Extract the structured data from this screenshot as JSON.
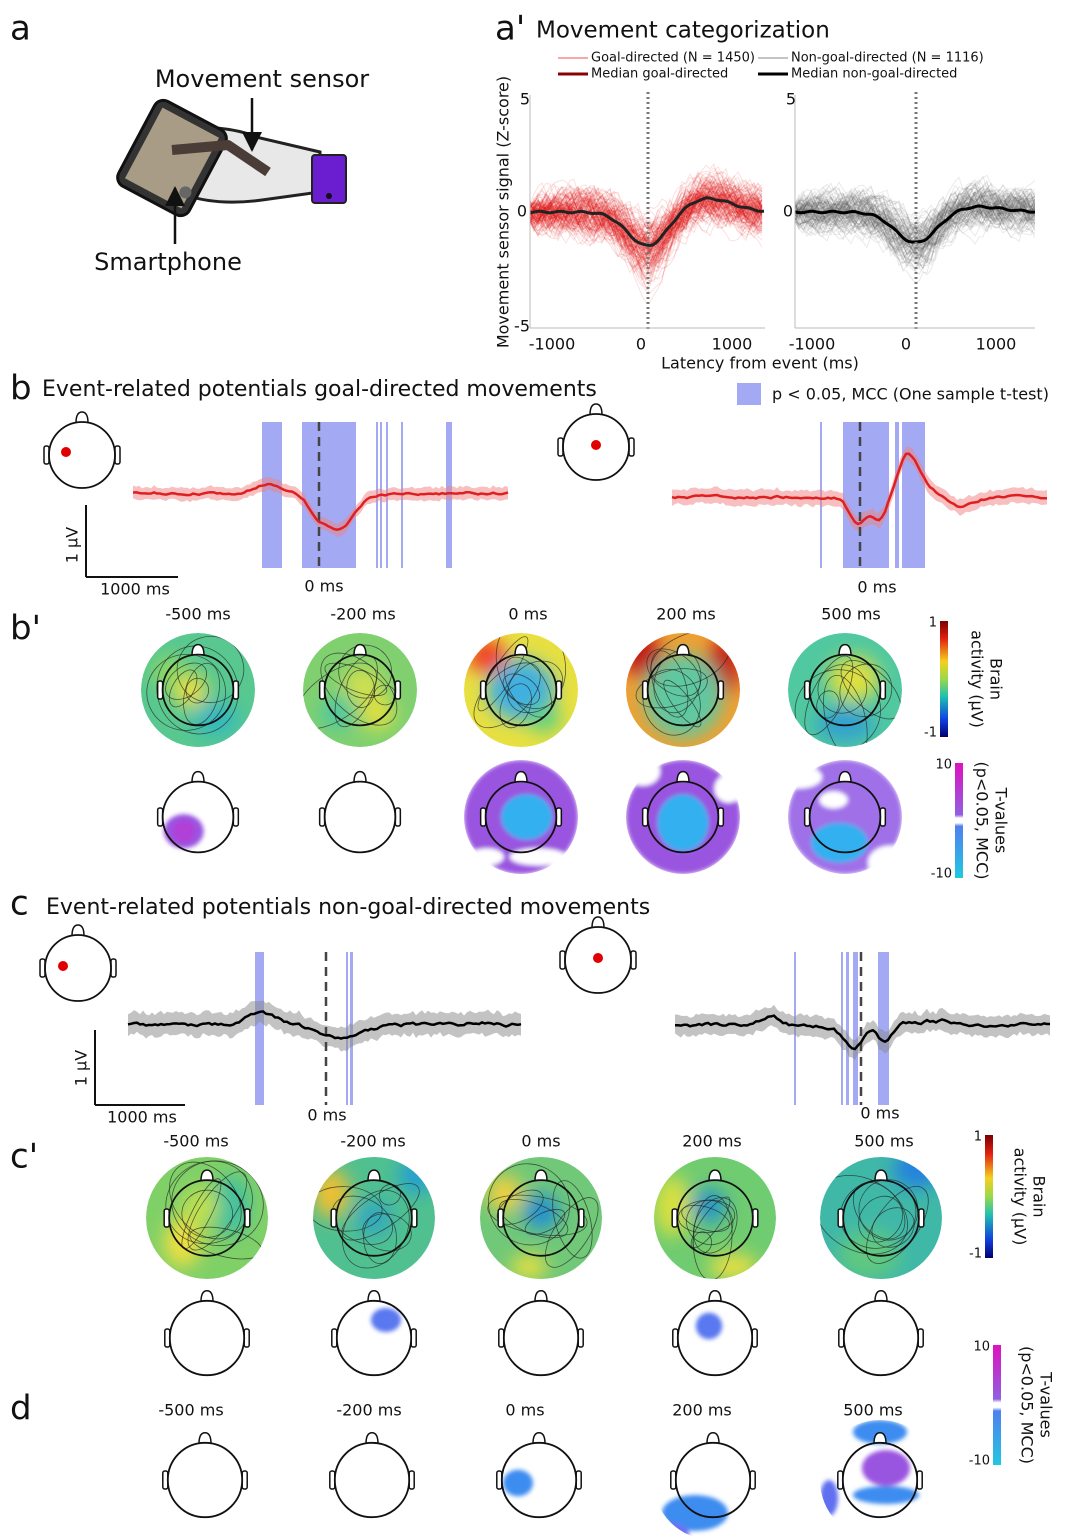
{
  "panel_a": {
    "letter": "a",
    "sensor_label": "Movement sensor",
    "phone_label": "Smartphone"
  },
  "panel_a_prime": {
    "letter": "a'",
    "title": "Movement categorization",
    "legend": [
      "Goal-directed (N = 1450)",
      "Non-goal-directed (N = 1116)",
      "Median goal-directed",
      "Median non-goal-directed"
    ],
    "y_label": "Movement sensor signal (Z-score)",
    "x_label": "Latency from event (ms)",
    "yticks": [
      "5",
      "0",
      "-5"
    ],
    "xticks": [
      "-1000",
      "0",
      "1000"
    ]
  },
  "panel_b": {
    "letter": "b",
    "title": "Event-related potentials goal-directed movements",
    "legend": "p < 0.05, MCC (One sample t-test)",
    "scale_y": "1 µV",
    "scale_x": "1000   ms",
    "zero_labels": [
      "0 ms",
      "0 ms"
    ]
  },
  "panel_b_prime": {
    "letter": "b'",
    "times": [
      "-500 ms",
      "-200 ms",
      "0 ms",
      "200 ms",
      "500 ms"
    ],
    "brain_bar": {
      "lines": [
        "Brain",
        "activity (µV)"
      ],
      "max": "1",
      "min": "-1"
    },
    "t_bar": {
      "lines": [
        "T-values",
        "(p<0.05, MCC)"
      ],
      "max": "10",
      "min": "-10"
    }
  },
  "panel_c": {
    "letter": "c",
    "title": "Event-related potentials non-goal-directed movements",
    "scale_y": "1 µV",
    "scale_x": "1000  ms",
    "zero_labels": [
      "0 ms",
      "0 ms"
    ]
  },
  "panel_c_prime": {
    "letter": "c'",
    "times": [
      "-500 ms",
      "-200 ms",
      "0 ms",
      "200 ms",
      "500 ms"
    ],
    "brain_bar": {
      "lines": [
        "Brain",
        "activity (µV)"
      ],
      "max": "1",
      "min": "-1"
    },
    "t_bar": {
      "lines": [
        "T-values",
        "(p<0.05, MCC)"
      ],
      "max": "10",
      "min": "-10"
    }
  },
  "panel_d": {
    "letter": "d",
    "times": [
      "-500 ms",
      "-200 ms",
      "0 ms",
      "200 ms",
      "500 ms"
    ]
  }
}
